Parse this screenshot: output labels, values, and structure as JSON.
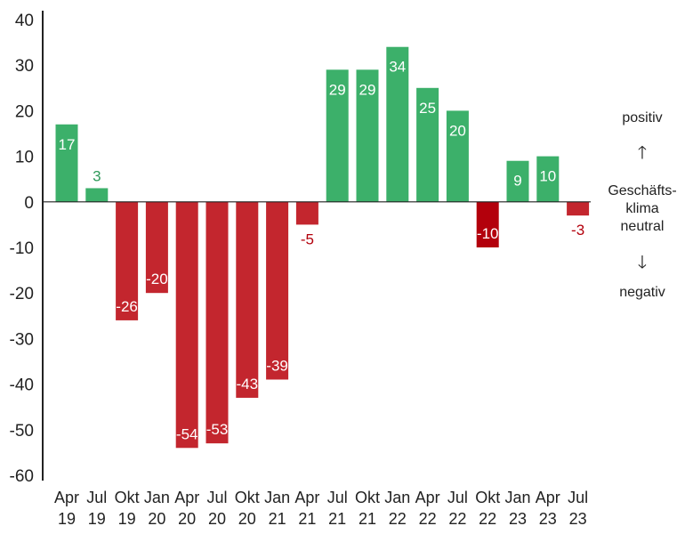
{
  "chart_data": {
    "type": "bar",
    "categories": [
      [
        "Apr",
        "19"
      ],
      [
        "Jul",
        "19"
      ],
      [
        "Okt",
        "19"
      ],
      [
        "Jan",
        "20"
      ],
      [
        "Apr",
        "20"
      ],
      [
        "Jul",
        "20"
      ],
      [
        "Okt",
        "20"
      ],
      [
        "Jan",
        "21"
      ],
      [
        "Apr",
        "21"
      ],
      [
        "Jul",
        "21"
      ],
      [
        "Okt",
        "21"
      ],
      [
        "Jan",
        "22"
      ],
      [
        "Apr",
        "22"
      ],
      [
        "Jul",
        "22"
      ],
      [
        "Okt",
        "22"
      ],
      [
        "Jan",
        "23"
      ],
      [
        "Apr",
        "23"
      ],
      [
        "Jul",
        "23"
      ]
    ],
    "values": [
      17,
      3,
      -26,
      -20,
      -54,
      -53,
      -43,
      -39,
      -5,
      29,
      29,
      34,
      25,
      20,
      -10,
      9,
      10,
      -3
    ],
    "value_labels": [
      "17",
      "3",
      "-26",
      "-20",
      "-54",
      "-53",
      "-43",
      "-39",
      "-5",
      "29",
      "29",
      "34",
      "25",
      "20",
      "-10",
      "9",
      "10",
      "-3"
    ],
    "ylim": [
      -60,
      40
    ],
    "yticks": [
      40,
      30,
      20,
      10,
      0,
      -10,
      -20,
      -30,
      -40,
      -50,
      -60
    ],
    "grid": false,
    "colors": {
      "positive": "#3cb06a",
      "negative": "#c3262e",
      "highlight_negative": "#b3000c",
      "positive_label_outside": "#2f9a5a",
      "negative_label_outside": "#b3000c",
      "label_inside": "#ffffff"
    },
    "highlight_index": 14
  },
  "legend": {
    "positive": "positiv",
    "up_arrow": "🡑",
    "neutral": "Geschäfts-\nklima\nneutral",
    "down_arrow": "🡓",
    "negative": "negativ"
  }
}
